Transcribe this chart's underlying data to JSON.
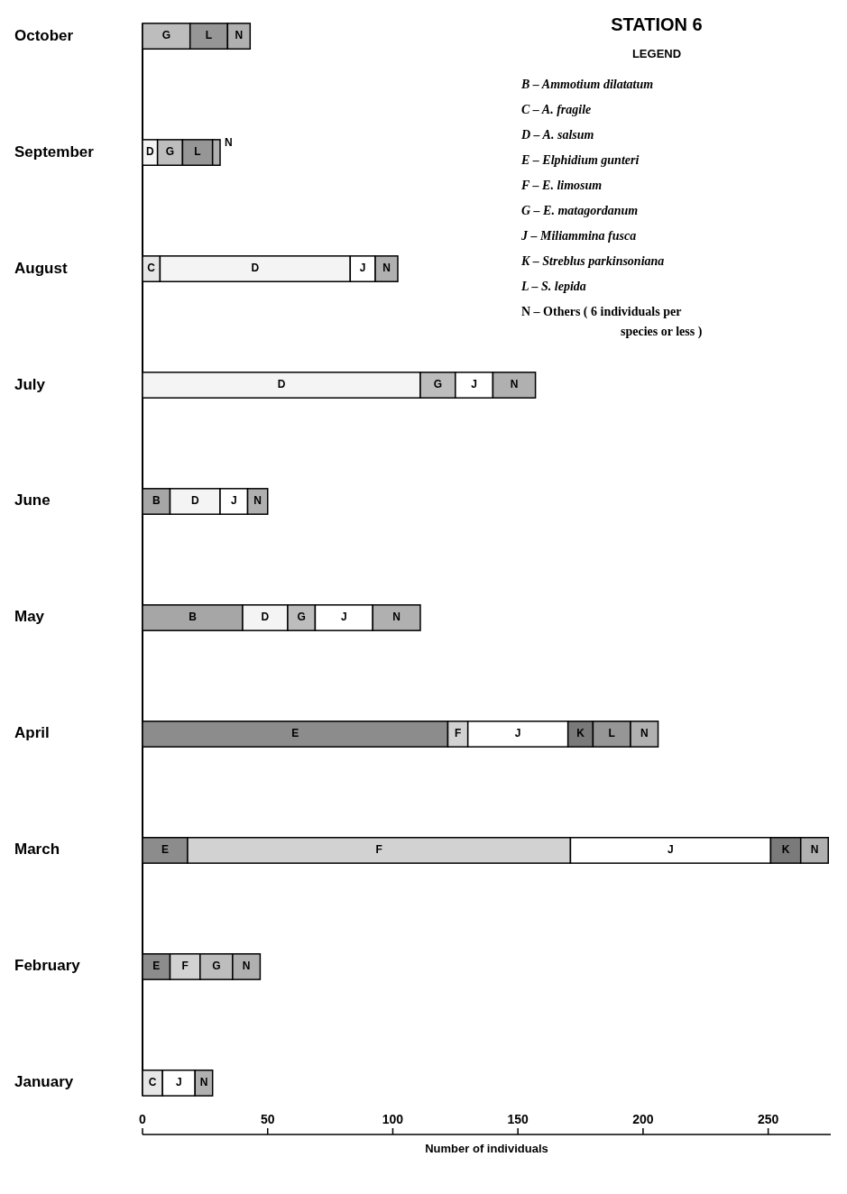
{
  "chart_data": {
    "type": "bar",
    "orientation": "horizontal",
    "stacked": true,
    "title": "STATION 6",
    "legend_title": "LEGEND",
    "xlabel": "Number of individuals",
    "categories": [
      "October",
      "September",
      "August",
      "July",
      "June",
      "May",
      "April",
      "March",
      "February",
      "January"
    ],
    "xlim": [
      0,
      275
    ],
    "xticks": [
      0,
      50,
      100,
      150,
      200,
      250
    ],
    "grid": false,
    "annotations": [
      "B – Ammotium dilatatum",
      "C – A. fragile",
      "D – A. salsum",
      "E – Elphidium gunteri",
      "F – E. limosum",
      "G – E. matagordanum",
      "J – Miliammina fusca",
      "K – Streblus parkinsoniana",
      "L – S. lepida",
      "N – Others ( 6 individuals per species or less )"
    ],
    "series": [
      {
        "name": "B",
        "color": "#a6a6a6",
        "values": [
          null,
          null,
          null,
          null,
          11,
          40,
          null,
          null,
          null,
          null
        ]
      },
      {
        "name": "C",
        "color": "#e6e6e6",
        "values": [
          null,
          null,
          7,
          null,
          null,
          null,
          null,
          null,
          null,
          8
        ]
      },
      {
        "name": "D",
        "color": "#f4f4f4",
        "values": [
          null,
          6,
          76,
          111,
          20,
          18,
          null,
          null,
          null,
          null
        ]
      },
      {
        "name": "E",
        "color": "#8c8c8c",
        "values": [
          null,
          null,
          null,
          null,
          null,
          null,
          122,
          18,
          11,
          null
        ]
      },
      {
        "name": "F",
        "color": "#d2d2d2",
        "values": [
          null,
          null,
          null,
          null,
          null,
          null,
          8,
          153,
          12,
          null
        ]
      },
      {
        "name": "G",
        "color": "#bdbdbd",
        "values": [
          19,
          10,
          null,
          14,
          null,
          11,
          null,
          null,
          13,
          null
        ]
      },
      {
        "name": "J",
        "color": "#ffffff",
        "values": [
          null,
          null,
          10,
          15,
          11,
          23,
          40,
          80,
          null,
          13
        ]
      },
      {
        "name": "K",
        "color": "#7a7a7a",
        "values": [
          null,
          null,
          null,
          null,
          null,
          null,
          10,
          12,
          null,
          null
        ]
      },
      {
        "name": "L",
        "color": "#969696",
        "values": [
          15,
          12,
          null,
          null,
          null,
          null,
          15,
          null,
          null,
          null
        ]
      },
      {
        "name": "N",
        "color": "#b0b0b0",
        "values": [
          9,
          3,
          9,
          17,
          8,
          19,
          11,
          11,
          11,
          7
        ]
      }
    ]
  }
}
